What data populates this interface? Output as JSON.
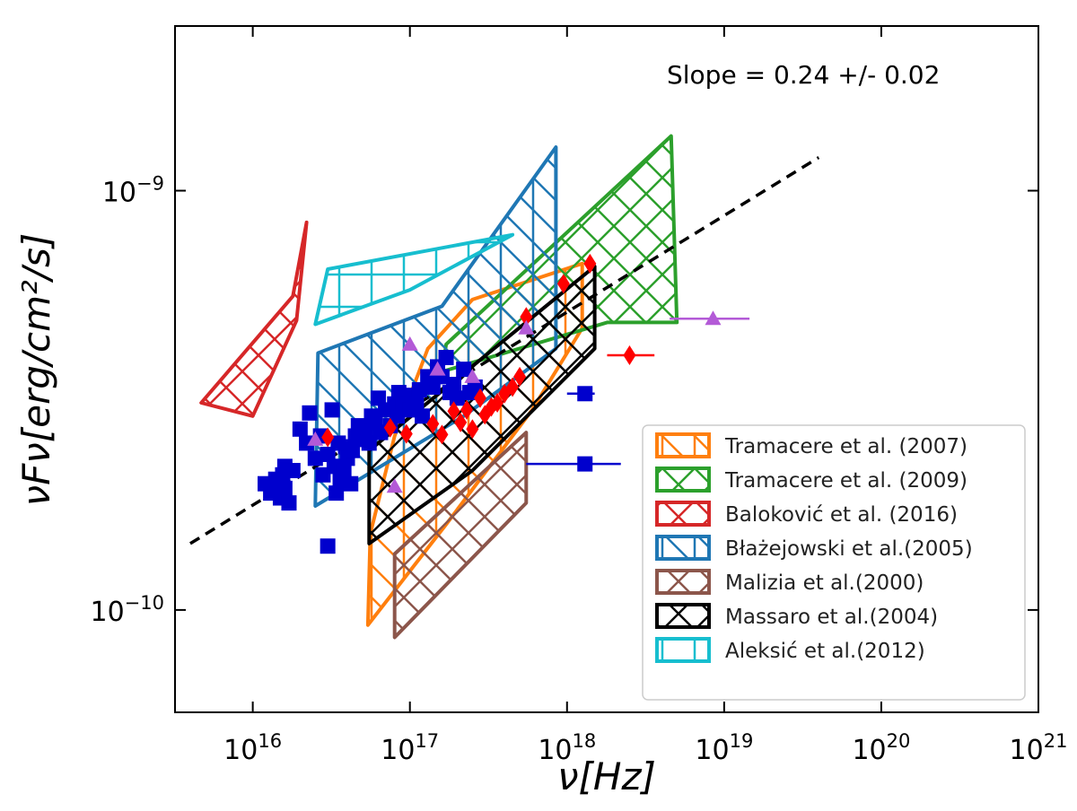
{
  "chart_data": {
    "type": "scatter",
    "xlabel": "ν[Hz]",
    "ylabel": "νFν[erg/cm²/s]",
    "xscale": "log",
    "yscale": "log",
    "xlim": [
      3200000000000000.0,
      1e+21
    ],
    "ylim": [
      5.7e-11,
      2.47e-09
    ],
    "x_ticks": [
      {
        "value": 1e+16,
        "label": "10",
        "exp": "16"
      },
      {
        "value": 1e+17,
        "label": "10",
        "exp": "17"
      },
      {
        "value": 1e+18,
        "label": "10",
        "exp": "18"
      },
      {
        "value": 1e+19,
        "label": "10",
        "exp": "19"
      },
      {
        "value": 1e+20,
        "label": "10",
        "exp": "20"
      },
      {
        "value": 1e+21,
        "label": "10",
        "exp": "21"
      }
    ],
    "y_ticks": [
      {
        "value": 1e-10,
        "label": "10",
        "exp": "−10"
      },
      {
        "value": 1e-09,
        "label": "10",
        "exp": "−9"
      }
    ],
    "grid": false,
    "legend": "lower-right",
    "annotation": {
      "text": "Slope = 0.24 +/- 0.02",
      "x": 1.1e+19,
      "y": 1.55e-09
    },
    "fit_line": {
      "x": [
        4000000000000000.0,
        4e+19
      ],
      "y": [
        1.44e-10,
        1.2e-09
      ],
      "style": "dashed",
      "color": "#000000"
    },
    "regions": [
      {
        "name": "Tramacere et al. (2007)",
        "color": "#ff7f0e",
        "hatch": "\\",
        "polygon": [
          [
            5.4e+16,
            9.2e-11
          ],
          [
            5.6e+16,
            1.52e-10
          ],
          [
            8e+16,
            2.6e-10
          ],
          [
            1.3e+17,
            4.2e-10
          ],
          [
            2.5e+17,
            5.5e-10
          ],
          [
            1.25e+18,
            6.7e-10
          ],
          [
            1.25e+18,
            4.7e-10
          ],
          [
            6e+17,
            3e-10
          ],
          [
            1.7e+17,
            1.6e-10
          ]
        ]
      },
      {
        "name": "Tramacere et al. (2009)",
        "color": "#2ca02c",
        "hatch": "x",
        "polygon": [
          [
            1.6e+17,
            3.7e-10
          ],
          [
            1.7e+17,
            4.3e-10
          ],
          [
            4.6e+18,
            1.35e-09
          ],
          [
            5e+18,
            4.85e-10
          ],
          [
            1.8e+18,
            4.85e-10
          ]
        ]
      },
      {
        "name": "Baloković et al. (2016)",
        "color": "#d62728",
        "hatch": "x",
        "polygon": [
          [
            4700000000000000.0,
            3.12e-10
          ],
          [
            1e+16,
            2.9e-10
          ],
          [
            1.9e+16,
            4.9e-10
          ],
          [
            2.2e+16,
            8.4e-10
          ],
          [
            1.8e+16,
            5.6e-10
          ]
        ]
      },
      {
        "name": "Błażejowski et al.(2005)",
        "color": "#1f77b4",
        "hatch": "\\",
        "polygon": [
          [
            2.5e+16,
            1.77e-10
          ],
          [
            2.6e+16,
            4.1e-10
          ],
          [
            1.6e+17,
            5.3e-10
          ],
          [
            8.5e+17,
            1.27e-09
          ],
          [
            8.5e+17,
            4.2e-10
          ],
          [
            2.2e+17,
            2.9e-10
          ]
        ]
      },
      {
        "name": "Malizia et al.(2000)",
        "color": "#8c564b",
        "hatch": "x",
        "polygon": [
          [
            8e+16,
            8.6e-11
          ],
          [
            8e+16,
            1.36e-10
          ],
          [
            5.5e+17,
            2.65e-10
          ],
          [
            5.5e+17,
            1.8e-10
          ]
        ]
      },
      {
        "name": "Massaro et al.(2004)",
        "color": "#000000",
        "hatch": "x",
        "polygon": [
          [
            5.5e+16,
            1.44e-10
          ],
          [
            5.5e+16,
            2.4e-10
          ],
          [
            1.5e+18,
            6.6e-10
          ],
          [
            1.5e+18,
            4.2e-10
          ],
          [
            2.5e+17,
            2.15e-10
          ]
        ]
      },
      {
        "name": "Aleksić et al.(2012)",
        "color": "#17becf",
        "hatch": "-",
        "polygon": [
          [
            2.5e+16,
            4.8e-10
          ],
          [
            3e+16,
            6.5e-10
          ],
          [
            4.5e+17,
            7.85e-10
          ],
          [
            1e+17,
            5.8e-10
          ]
        ]
      }
    ],
    "series": [
      {
        "marker": "square",
        "color": "#0000cd",
        "points": [
          [
            1.2e+16,
            2e-10
          ],
          [
            1.3e+16,
            1.9e-10
          ],
          [
            1.4e+16,
            2.05e-10
          ],
          [
            1.5e+16,
            1.85e-10
          ],
          [
            1.55e+16,
            2.1e-10
          ],
          [
            1.6e+16,
            2.2e-10
          ],
          [
            1.6e+16,
            1.95e-10
          ],
          [
            1.7e+16,
            1.8e-10
          ],
          [
            1.8e+16,
            2.15e-10
          ],
          [
            2e+16,
            2.7e-10
          ],
          [
            2.2e+16,
            2.5e-10
          ],
          [
            2.3e+16,
            2.95e-10
          ],
          [
            2.5e+16,
            2.3e-10
          ],
          [
            2.7e+16,
            2.6e-10
          ],
          [
            2.8e+16,
            2.1e-10
          ],
          [
            3e+16,
            2.35e-10
          ],
          [
            3.2e+16,
            3e-10
          ],
          [
            3.3e+16,
            2.2e-10
          ],
          [
            3.4e+16,
            1.9e-10
          ],
          [
            3.5e+16,
            2.5e-10
          ],
          [
            3.6e+16,
            2.05e-10
          ],
          [
            3.7e+16,
            2.2e-10
          ],
          [
            3.8e+16,
            2.15e-10
          ],
          [
            3.9e+16,
            2.45e-10
          ],
          [
            4e+16,
            2.3e-10
          ],
          [
            4.2e+16,
            2e-10
          ],
          [
            4.3e+16,
            2.4e-10
          ],
          [
            4.5e+16,
            2.6e-10
          ],
          [
            4.7e+16,
            2.75e-10
          ],
          [
            5e+16,
            2.55e-10
          ],
          [
            5.2e+16,
            2.7e-10
          ],
          [
            5.5e+16,
            2.5e-10
          ],
          [
            5.7e+16,
            2.9e-10
          ],
          [
            6e+16,
            2.8e-10
          ],
          [
            6.3e+16,
            3.2e-10
          ],
          [
            6.5e+16,
            2.65e-10
          ],
          [
            7e+16,
            3e-10
          ],
          [
            7.5e+16,
            2.75e-10
          ],
          [
            8e+16,
            3.1e-10
          ],
          [
            8.3e+16,
            2.9e-10
          ],
          [
            8.5e+16,
            3.3e-10
          ],
          [
            9e+16,
            3.1e-10
          ],
          [
            9.5e+16,
            3.05e-10
          ],
          [
            1e+17,
            3e-10
          ],
          [
            1.05e+17,
            3.25e-10
          ],
          [
            1.1e+17,
            3.1e-10
          ],
          [
            1.15e+17,
            3.35e-10
          ],
          [
            1.2e+17,
            2.9e-10
          ],
          [
            1.3e+17,
            3.6e-10
          ],
          [
            1.4e+17,
            3.4e-10
          ],
          [
            1.5e+17,
            3.8e-10
          ],
          [
            1.6e+17,
            3.6e-10
          ],
          [
            1.7e+17,
            4e-10
          ],
          [
            1.8e+17,
            3.3e-10
          ],
          [
            1.9e+17,
            3.45e-10
          ],
          [
            2e+17,
            3.2e-10
          ],
          [
            2.2e+17,
            3.75e-10
          ],
          [
            2.4e+17,
            3.3e-10
          ],
          [
            2.6e+17,
            3.4e-10
          ],
          [
            3e+16,
            1.42e-10
          ],
          [
            1.3e+18,
            3.28e-10
          ],
          [
            1.3e+18,
            2.23e-10
          ]
        ]
      },
      {
        "marker": "diamond",
        "color": "#ff0000",
        "points": [
          [
            3e+16,
            2.58e-10
          ],
          [
            7.5e+16,
            2.72e-10
          ],
          [
            9.5e+16,
            2.63e-10
          ],
          [
            1.4e+17,
            2.78e-10
          ],
          [
            1.6e+17,
            2.62e-10
          ],
          [
            1.9e+17,
            2.98e-10
          ],
          [
            2.1e+17,
            2.8e-10
          ],
          [
            2.3e+17,
            3e-10
          ],
          [
            2.5e+17,
            2.7e-10
          ],
          [
            2.8e+17,
            3.2e-10
          ],
          [
            3e+17,
            2.92e-10
          ],
          [
            3.3e+17,
            3.05e-10
          ],
          [
            3.6e+17,
            3.12e-10
          ],
          [
            4e+17,
            3.28e-10
          ],
          [
            4.5e+17,
            3.4e-10
          ],
          [
            5e+17,
            3.6e-10
          ],
          [
            5.5e+17,
            5e-10
          ],
          [
            9.5e+17,
            6e-10
          ],
          [
            1.4e+18,
            6.7e-10
          ],
          [
            2.5e+18,
            4.05e-10
          ]
        ]
      },
      {
        "marker": "triangle",
        "color": "#b35ad7",
        "points": [
          [
            2.5e+16,
            2.55e-10
          ],
          [
            8e+16,
            1.97e-10
          ],
          [
            1e+17,
            4.3e-10
          ],
          [
            1.5e+17,
            3.75e-10
          ],
          [
            2.5e+17,
            3.6e-10
          ],
          [
            5.5e+17,
            4.7e-10
          ],
          [
            8.5e+18,
            4.95e-10
          ]
        ]
      }
    ],
    "error_bars": [
      {
        "x": [
          1e+18,
          1.5e+18
        ],
        "y": 3.28e-10,
        "color": "#0000cd"
      },
      {
        "x": [
          5.5e+17,
          2.2e+18
        ],
        "y": 2.23e-10,
        "color": "#0000cd"
      },
      {
        "x": [
          1.8e+18,
          3.6e+18
        ],
        "y": 4.05e-10,
        "color": "#ff0000"
      },
      {
        "x": [
          4.5e+18,
          1.45e+19
        ],
        "y": 4.95e-10,
        "color": "#b35ad7"
      }
    ]
  }
}
